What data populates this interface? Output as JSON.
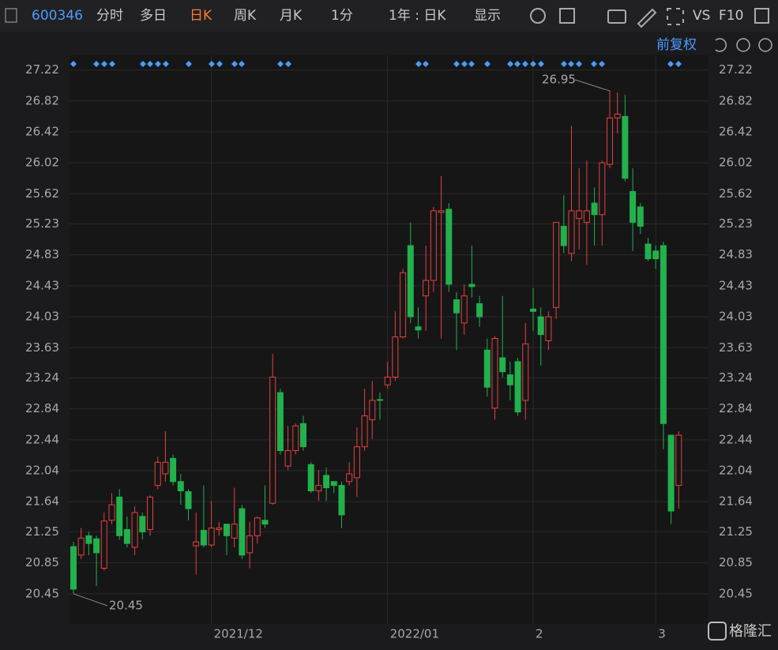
{
  "toolbar": {
    "code": "600346",
    "tabs": [
      "分时",
      "多日",
      "日K",
      "周K",
      "月K",
      "1分"
    ],
    "active_tab": 2,
    "period": "1年 : 日K",
    "display": "显示",
    "vs": "VS",
    "f10": "F10",
    "adjust": "前复权",
    "watermark": "格隆汇"
  },
  "chart_data": {
    "type": "candlestick",
    "up_color": "#e8413e",
    "down_color": "#22b14c",
    "grid": true,
    "categories": [
      null,
      null,
      null,
      null,
      null,
      null,
      null,
      null,
      null,
      null,
      null,
      null,
      null,
      null,
      null,
      null,
      null,
      null,
      "2021/12",
      null,
      null,
      null,
      null,
      null,
      null,
      null,
      null,
      null,
      null,
      null,
      null,
      null,
      null,
      null,
      null,
      null,
      null,
      null,
      null,
      null,
      null,
      "2022/01",
      null,
      null,
      null,
      null,
      null,
      null,
      null,
      null,
      null,
      null,
      null,
      null,
      null,
      null,
      null,
      null,
      null,
      null,
      "2",
      null,
      null,
      null,
      null,
      null,
      null,
      null,
      null,
      null,
      null,
      null,
      null,
      null,
      null,
      null,
      "3",
      null,
      null,
      null
    ],
    "open": [
      21.06,
      20.95,
      21.2,
      21.16,
      20.78,
      21.4,
      21.7,
      21.28,
      21.05,
      21.45,
      21.28,
      21.85,
      22.0,
      22.2,
      21.9,
      21.77,
      21.07,
      21.27,
      21.08,
      21.28,
      21.35,
      21.17,
      21.55,
      20.98,
      21.2,
      21.4,
      21.62,
      23.05,
      22.1,
      22.3,
      22.65,
      22.12,
      21.78,
      21.98,
      21.9,
      21.85,
      21.9,
      21.95,
      22.35,
      22.7,
      22.96,
      23.15,
      23.25,
      23.77,
      24.95,
      23.9,
      24.3,
      24.5,
      25.38,
      25.42,
      24.25,
      23.95,
      24.45,
      24.2,
      23.6,
      22.85,
      23.5,
      23.28,
      23.45,
      22.95,
      24.13,
      24.03,
      23.72,
      24.15,
      25.2,
      24.85,
      25.3,
      25.25,
      25.5,
      25.35,
      26.0,
      26.6,
      26.62,
      25.65,
      25.45,
      24.97,
      24.88,
      24.95,
      22.5,
      21.85
    ],
    "high": [
      21.12,
      21.3,
      21.25,
      21.2,
      21.5,
      21.75,
      21.8,
      21.45,
      21.58,
      21.5,
      21.72,
      22.22,
      22.55,
      22.25,
      22.0,
      21.8,
      21.5,
      21.85,
      21.65,
      21.38,
      21.35,
      21.82,
      21.6,
      21.38,
      21.45,
      21.85,
      23.55,
      23.1,
      22.62,
      22.65,
      22.75,
      22.15,
      22.05,
      22.08,
      21.9,
      21.9,
      22.15,
      22.6,
      23.1,
      23.2,
      23.05,
      23.45,
      24.1,
      24.65,
      25.25,
      24.15,
      24.95,
      25.45,
      25.85,
      25.5,
      24.35,
      24.45,
      24.95,
      24.3,
      23.75,
      23.78,
      24.3,
      23.45,
      23.5,
      23.95,
      24.4,
      24.15,
      24.1,
      25.25,
      25.6,
      26.5,
      25.95,
      26.05,
      25.7,
      26.05,
      26.95,
      26.93,
      26.9,
      25.95,
      25.5,
      25.05,
      24.95,
      25.0,
      22.5,
      22.55
    ],
    "low": [
      20.45,
      20.9,
      20.95,
      20.55,
      20.75,
      21.35,
      21.15,
      21.05,
      20.95,
      21.15,
      21.2,
      21.8,
      21.9,
      21.85,
      21.6,
      21.4,
      20.7,
      21.05,
      21.05,
      21.2,
      20.95,
      21.05,
      20.9,
      20.78,
      21.1,
      21.3,
      21.6,
      22.25,
      22.05,
      22.25,
      22.3,
      21.75,
      21.65,
      21.65,
      21.75,
      21.3,
      21.85,
      21.7,
      22.3,
      22.45,
      22.7,
      23.1,
      23.2,
      23.75,
      23.95,
      23.75,
      23.85,
      24.35,
      23.75,
      24.35,
      23.6,
      23.8,
      24.28,
      23.9,
      23.0,
      22.7,
      23.25,
      22.95,
      22.75,
      22.7,
      23.85,
      23.4,
      23.6,
      24.0,
      24.85,
      24.75,
      24.9,
      24.7,
      24.95,
      24.95,
      25.95,
      26.4,
      25.78,
      24.88,
      25.1,
      24.75,
      24.65,
      22.32,
      21.35,
      21.55
    ],
    "close": [
      20.51,
      21.17,
      21.1,
      20.98,
      21.39,
      21.6,
      21.2,
      21.1,
      21.5,
      21.25,
      21.7,
      22.15,
      22.15,
      21.9,
      21.78,
      21.55,
      21.12,
      21.08,
      21.3,
      21.3,
      21.2,
      21.35,
      20.95,
      21.2,
      21.43,
      21.35,
      23.25,
      22.3,
      22.3,
      22.62,
      22.35,
      21.78,
      21.85,
      21.82,
      21.85,
      21.47,
      22.0,
      22.35,
      22.75,
      22.95,
      22.95,
      23.25,
      23.77,
      24.6,
      24.03,
      23.86,
      24.5,
      25.4,
      25.4,
      24.45,
      24.08,
      24.3,
      24.42,
      24.03,
      23.12,
      23.75,
      23.32,
      23.15,
      22.8,
      23.68,
      24.1,
      23.8,
      24.03,
      25.25,
      24.95,
      25.4,
      25.4,
      25.4,
      25.35,
      26.02,
      26.6,
      26.65,
      25.82,
      25.25,
      25.2,
      24.78,
      24.78,
      22.65,
      21.52,
      22.5
    ],
    "ylim": [
      20.06,
      27.41
    ],
    "yticks": [
      20.45,
      20.85,
      21.25,
      21.64,
      22.04,
      22.44,
      22.84,
      23.24,
      23.63,
      24.03,
      24.43,
      24.83,
      25.23,
      25.62,
      26.02,
      26.42,
      26.82,
      27.22
    ]
  }
}
